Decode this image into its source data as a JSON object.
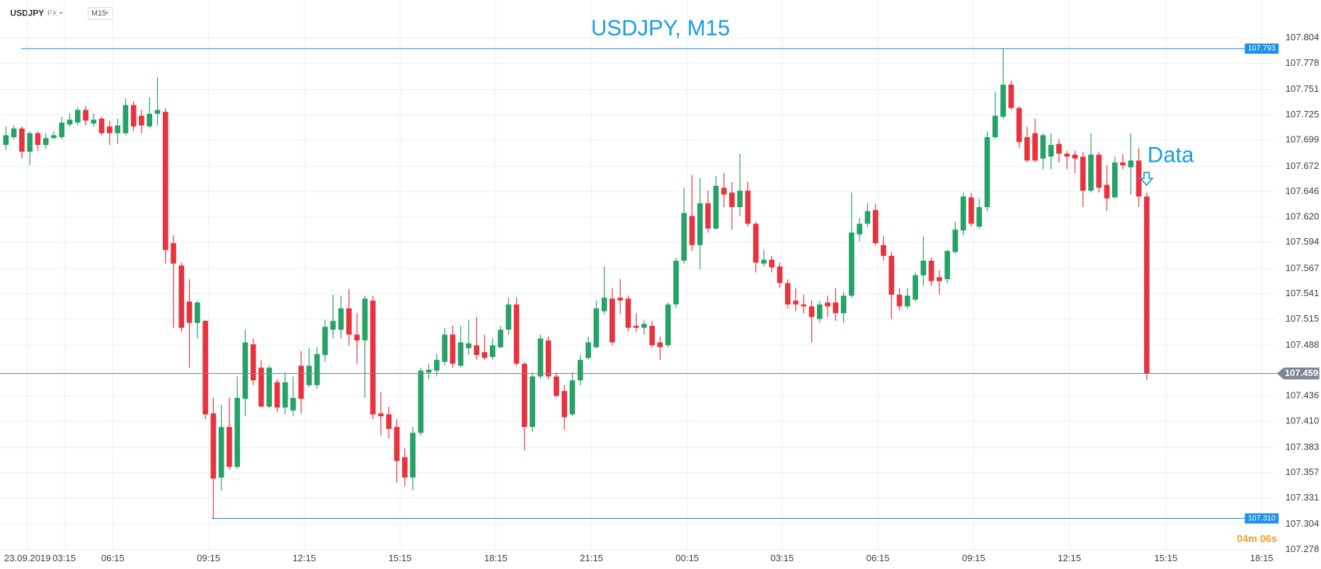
{
  "toolbar": {
    "symbol": "USDJPY",
    "market": "FX",
    "timeframe": "M15"
  },
  "chart_data": {
    "type": "candlestick",
    "title": "USDJPY, M15",
    "up_color": "#26a268",
    "down_color": "#e8333f",
    "title_color": "#1a9ee6",
    "grid": true,
    "open": [
      107.694,
      107.702,
      107.711,
      107.687,
      107.706,
      107.694,
      107.701,
      107.702,
      107.715,
      107.717,
      107.73,
      107.716,
      107.721,
      107.713,
      107.706,
      107.706,
      107.735,
      107.724,
      107.713,
      107.726,
      107.728,
      107.593,
      107.57,
      107.533,
      107.511,
      107.513,
      107.418,
      107.352,
      107.404,
      107.363,
      107.433,
      107.489,
      107.465,
      107.425,
      107.45,
      107.424,
      107.421,
      107.467,
      107.447,
      107.447,
      107.478,
      107.504,
      107.504,
      107.526,
      107.499,
      107.493,
      107.534,
      107.418,
      107.417,
      107.404,
      107.373,
      107.352,
      107.398,
      107.46,
      107.462,
      107.471,
      107.499,
      107.467,
      107.485,
      107.488,
      107.481,
      107.476,
      107.486,
      107.504,
      107.53,
      107.469,
      107.404,
      107.456,
      107.493,
      107.456,
      107.441,
      107.417,
      107.452,
      107.475,
      107.486,
      107.523,
      107.536,
      107.537,
      107.536,
      107.508,
      107.506,
      107.508,
      107.491,
      107.488,
      107.53,
      107.575,
      107.621,
      107.591,
      107.634,
      107.608,
      107.65,
      107.645,
      107.63,
      107.647,
      107.613,
      107.572,
      107.576,
      107.569,
      107.552,
      107.534,
      107.53,
      107.528,
      107.515,
      107.532,
      107.532,
      107.521,
      107.539,
      107.602,
      107.613,
      107.627,
      107.591,
      107.58,
      107.54,
      107.528,
      107.535,
      107.56,
      107.575,
      107.558,
      107.556,
      107.584,
      107.606,
      107.64,
      107.61,
      107.63,
      107.702,
      107.723,
      107.756,
      107.732,
      107.702,
      107.706,
      107.68,
      107.682,
      107.695,
      107.685,
      107.684,
      107.682,
      107.647,
      107.684,
      107.653,
      107.64,
      107.676,
      107.671,
      107.678,
      107.641
    ],
    "high": [
      107.713,
      107.714,
      107.713,
      107.708,
      107.708,
      107.706,
      107.708,
      107.723,
      107.726,
      107.733,
      107.734,
      107.726,
      107.723,
      107.719,
      107.721,
      107.742,
      107.739,
      107.73,
      107.743,
      107.764,
      107.732,
      107.601,
      107.573,
      107.556,
      107.534,
      107.514,
      107.434,
      107.427,
      107.434,
      107.456,
      107.504,
      107.495,
      107.473,
      107.467,
      107.453,
      107.46,
      107.456,
      107.482,
      107.485,
      107.486,
      107.514,
      107.54,
      107.539,
      107.546,
      107.521,
      107.539,
      107.539,
      107.44,
      107.425,
      107.412,
      107.382,
      107.404,
      107.465,
      107.469,
      107.479,
      107.506,
      107.508,
      107.508,
      107.514,
      107.517,
      107.499,
      107.495,
      107.508,
      107.537,
      107.537,
      107.471,
      107.46,
      107.499,
      107.497,
      107.46,
      107.447,
      107.46,
      107.478,
      107.497,
      107.534,
      107.569,
      107.547,
      107.556,
      107.539,
      107.521,
      107.514,
      107.513,
      107.497,
      107.532,
      107.578,
      107.65,
      107.663,
      107.66,
      107.647,
      107.662,
      107.665,
      107.656,
      107.685,
      107.656,
      107.615,
      107.586,
      107.58,
      107.573,
      107.556,
      107.547,
      107.54,
      107.534,
      107.534,
      107.539,
      107.547,
      107.543,
      107.645,
      107.619,
      107.634,
      107.633,
      107.6,
      107.584,
      107.547,
      107.547,
      107.563,
      107.6,
      107.578,
      107.565,
      107.586,
      107.615,
      107.645,
      107.645,
      107.639,
      107.708,
      107.749,
      107.793,
      107.76,
      107.734,
      107.713,
      107.721,
      107.706,
      107.706,
      107.7,
      107.688,
      107.688,
      107.687,
      107.706,
      107.687,
      107.673,
      107.682,
      107.685,
      107.706,
      107.691,
      107.645
    ],
    "low": [
      107.689,
      107.7,
      107.68,
      107.673,
      107.688,
      107.69,
      107.7,
      107.7,
      107.713,
      107.714,
      107.714,
      107.713,
      107.704,
      107.694,
      107.695,
      107.704,
      107.708,
      107.706,
      107.711,
      107.714,
      107.572,
      107.506,
      107.502,
      107.465,
      107.495,
      107.412,
      107.31,
      107.339,
      107.36,
      107.361,
      107.415,
      107.447,
      107.424,
      107.423,
      107.419,
      107.417,
      107.415,
      107.418,
      107.445,
      107.443,
      107.471,
      107.495,
      107.495,
      107.488,
      107.469,
      107.434,
      107.412,
      107.395,
      107.392,
      107.347,
      107.343,
      107.339,
      107.395,
      107.453,
      107.456,
      107.467,
      107.465,
      107.465,
      107.478,
      107.473,
      107.473,
      107.473,
      107.485,
      107.499,
      107.467,
      107.38,
      107.399,
      107.453,
      107.453,
      107.434,
      107.401,
      107.415,
      107.447,
      107.473,
      107.485,
      107.52,
      107.488,
      107.52,
      107.502,
      107.502,
      107.499,
      107.486,
      107.473,
      107.486,
      107.526,
      107.572,
      107.585,
      107.566,
      107.604,
      107.607,
      107.63,
      107.607,
      107.621,
      107.61,
      107.563,
      107.569,
      107.563,
      107.547,
      107.526,
      107.523,
      107.521,
      107.491,
      107.511,
      107.517,
      107.513,
      107.511,
      107.537,
      107.595,
      107.61,
      107.591,
      107.575,
      107.515,
      107.524,
      107.526,
      107.533,
      107.549,
      107.549,
      107.54,
      107.552,
      107.582,
      107.601,
      107.61,
      107.608,
      107.626,
      107.7,
      107.721,
      107.73,
      107.691,
      107.676,
      107.676,
      107.669,
      107.669,
      107.676,
      107.669,
      107.665,
      107.63,
      107.645,
      107.645,
      107.626,
      107.639,
      107.669,
      107.643,
      107.63,
      107.452
    ],
    "close": [
      107.704,
      107.711,
      107.687,
      107.706,
      107.694,
      107.701,
      107.704,
      107.717,
      107.72,
      107.73,
      107.719,
      107.72,
      107.706,
      107.706,
      107.714,
      107.735,
      107.713,
      107.714,
      107.726,
      107.73,
      107.586,
      107.572,
      107.506,
      107.511,
      107.532,
      107.417,
      107.351,
      107.404,
      107.363,
      107.434,
      107.491,
      107.452,
      107.425,
      107.465,
      107.424,
      107.45,
      107.434,
      107.433,
      107.467,
      107.479,
      107.507,
      107.513,
      107.526,
      107.499,
      107.493,
      107.536,
      107.417,
      107.415,
      107.402,
      107.369,
      107.352,
      107.398,
      107.462,
      107.463,
      107.473,
      107.499,
      107.469,
      107.491,
      107.49,
      107.478,
      107.475,
      107.488,
      107.504,
      107.53,
      107.469,
      107.404,
      107.456,
      107.495,
      107.456,
      107.436,
      107.414,
      107.452,
      107.473,
      107.491,
      107.526,
      107.537,
      107.491,
      107.534,
      107.506,
      107.506,
      107.51,
      107.488,
      107.486,
      107.53,
      107.575,
      107.624,
      107.591,
      107.634,
      107.608,
      107.652,
      107.643,
      107.63,
      107.647,
      107.613,
      107.573,
      107.576,
      107.568,
      107.552,
      107.53,
      107.53,
      107.528,
      107.517,
      107.53,
      107.528,
      107.521,
      107.539,
      107.604,
      107.613,
      107.626,
      107.593,
      107.58,
      107.54,
      107.528,
      107.539,
      107.56,
      107.575,
      107.554,
      107.554,
      107.585,
      107.607,
      107.641,
      107.613,
      107.63,
      107.702,
      107.724,
      107.756,
      107.732,
      107.697,
      107.678,
      107.678,
      107.704,
      107.694,
      107.685,
      107.682,
      107.68,
      107.647,
      107.684,
      107.65,
      107.639,
      107.676,
      107.673,
      107.678,
      107.641,
      107.459
    ],
    "xlim": [
      -0.74,
      159
    ],
    "xticks": [
      {
        "value": 2.7,
        "label": "23.09.2019"
      },
      {
        "value": 7.3,
        "label": "03:15"
      },
      {
        "value": 13.4,
        "label": "06:15"
      },
      {
        "value": 25.4,
        "label": "09:15"
      },
      {
        "value": 37.4,
        "label": "12:15"
      },
      {
        "value": 49.4,
        "label": "15:15"
      },
      {
        "value": 61.4,
        "label": "18:15"
      },
      {
        "value": 73.4,
        "label": "21:15"
      },
      {
        "value": 85.4,
        "label": "00:15"
      },
      {
        "value": 97.3,
        "label": "03:15"
      },
      {
        "value": 109.3,
        "label": "06:15"
      },
      {
        "value": 121.3,
        "label": "09:15"
      },
      {
        "value": 133.3,
        "label": "12:15"
      },
      {
        "value": 145.4,
        "label": "15:15"
      },
      {
        "value": 157.4,
        "label": "18:15"
      }
    ],
    "ylim": [
      107.278,
      107.843
    ],
    "yticks": [
      107.804,
      107.778,
      107.751,
      107.725,
      107.699,
      107.672,
      107.646,
      {
        "value": 107.62,
        "label": "107.620"
      },
      107.594,
      107.567,
      107.541,
      107.515,
      107.488,
      107.436,
      {
        "value": 107.41,
        "label": "107.410"
      },
      107.383,
      107.357,
      107.331,
      107.304,
      107.278
    ],
    "high_line": 107.793,
    "high_line_color": "#1e90e8",
    "low_line": {
      "value": 107.31,
      "label": "107.310"
    },
    "low_line_color": "#1e90e8",
    "last_price": 107.459,
    "last_price_color": "#7c8794",
    "annotation": "Data",
    "countdown": "04m 06s",
    "countdown_color": "#f0a030"
  }
}
